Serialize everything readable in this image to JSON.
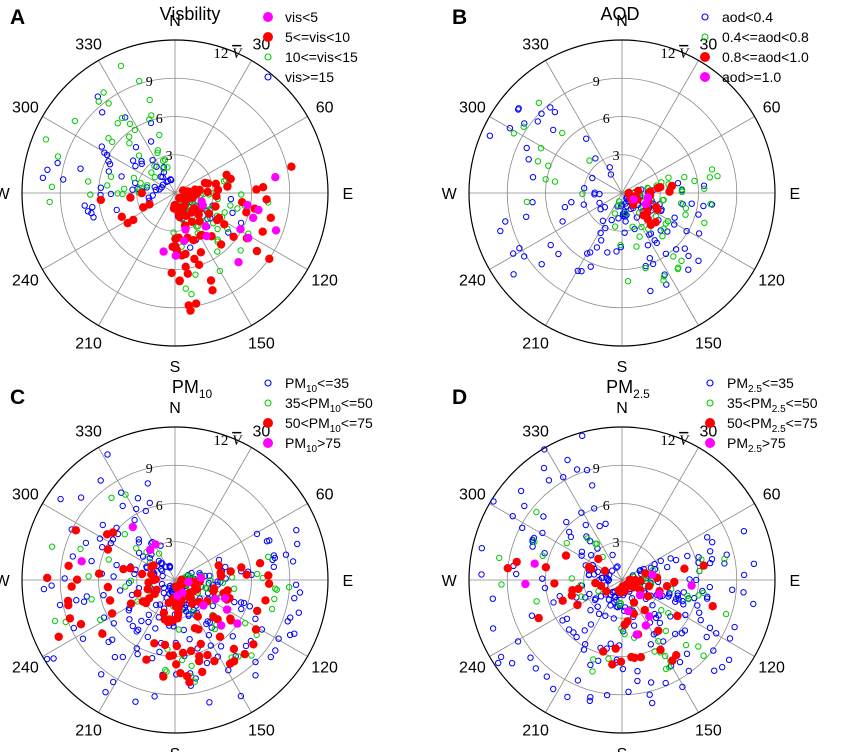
{
  "chart_data": [
    {
      "type": "scatter",
      "projection": "polar",
      "panel_label": "A",
      "title": "Visbility",
      "speed_label": "12",
      "speed_symbol": "V",
      "radial_ticks": [
        3,
        6,
        9
      ],
      "radial_max": 12,
      "angle_labels": [
        "N",
        "30",
        "60",
        "E",
        "120",
        "150",
        "S",
        "210",
        "240",
        "W",
        "300",
        "330"
      ],
      "legend": [
        {
          "label": "vis<5",
          "color": "#ff00ff",
          "filled": true
        },
        {
          "label": "5<=vis<10",
          "color": "#ff0000",
          "filled": true
        },
        {
          "label": "10<=vis<15",
          "color": "#00cc00",
          "filled": false
        },
        {
          "label": "vis>=15",
          "color": "#0000ff",
          "filled": false
        }
      ],
      "clusters": [
        {
          "series": 3,
          "count": 55,
          "amin": 250,
          "amax": 345,
          "rmin": 1,
          "rmax": 10.5,
          "seed": 11
        },
        {
          "series": 3,
          "count": 25,
          "amin": 95,
          "amax": 175,
          "rmin": 1,
          "rmax": 6,
          "seed": 12
        },
        {
          "series": 2,
          "count": 45,
          "amin": 265,
          "amax": 345,
          "rmin": 2,
          "rmax": 11.5,
          "seed": 13
        },
        {
          "series": 2,
          "count": 55,
          "amin": 75,
          "amax": 190,
          "rmin": 1,
          "rmax": 9,
          "seed": 14
        },
        {
          "series": 1,
          "count": 85,
          "amin": 70,
          "amax": 185,
          "rmin": 0.5,
          "rmax": 9.5,
          "seed": 15
        },
        {
          "series": 1,
          "count": 8,
          "amin": 235,
          "amax": 280,
          "rmin": 2,
          "rmax": 6,
          "seed": 16
        },
        {
          "series": 0,
          "count": 16,
          "amin": 80,
          "amax": 205,
          "rmin": 2,
          "rmax": 10.5,
          "seed": 17
        }
      ]
    },
    {
      "type": "scatter",
      "projection": "polar",
      "panel_label": "B",
      "title": "AOD",
      "speed_label": "12",
      "speed_symbol": "V",
      "radial_ticks": [
        3,
        6,
        9
      ],
      "radial_max": 12,
      "angle_labels": [
        "N",
        "30",
        "60",
        "E",
        "120",
        "150",
        "S",
        "210",
        "240",
        "W",
        "300",
        "330"
      ],
      "legend": [
        {
          "label": "aod<0.4",
          "color": "#0000ff",
          "filled": false
        },
        {
          "label": "0.4<=aod<0.8",
          "color": "#00cc00",
          "filled": false
        },
        {
          "label": "0.8<=aod<1.0",
          "color": "#ff0000",
          "filled": true
        },
        {
          "label": "aod>=1.0",
          "color": "#ff00ff",
          "filled": true
        }
      ],
      "clusters": [
        {
          "series": 0,
          "count": 95,
          "amin": 80,
          "amax": 215,
          "rmin": 0.5,
          "rmax": 8.5,
          "seed": 21
        },
        {
          "series": 0,
          "count": 40,
          "amin": 225,
          "amax": 340,
          "rmin": 1.5,
          "rmax": 11.5,
          "seed": 22
        },
        {
          "series": 1,
          "count": 55,
          "amin": 70,
          "amax": 200,
          "rmin": 0.5,
          "rmax": 8,
          "seed": 23
        },
        {
          "series": 1,
          "count": 12,
          "amin": 260,
          "amax": 340,
          "rmin": 3,
          "rmax": 10,
          "seed": 24
        },
        {
          "series": 2,
          "count": 22,
          "amin": 80,
          "amax": 140,
          "rmin": 0.5,
          "rmax": 4.5,
          "seed": 25
        },
        {
          "series": 3,
          "count": 3,
          "amin": 90,
          "amax": 130,
          "rmin": 1,
          "rmax": 3,
          "seed": 26
        }
      ]
    },
    {
      "type": "scatter",
      "projection": "polar",
      "panel_label": "C",
      "title": "PM",
      "title_sub": "10",
      "speed_label": "12",
      "speed_symbol": "V",
      "radial_ticks": [
        3,
        6,
        9
      ],
      "radial_max": 12,
      "angle_labels": [
        "N",
        "30",
        "60",
        "E",
        "120",
        "150",
        "S",
        "210",
        "240",
        "W",
        "300",
        "330"
      ],
      "legend": [
        {
          "label": "PM",
          "sub": "10",
          "suffix": "<=35",
          "color": "#0000ff",
          "filled": false
        },
        {
          "label": "35<PM",
          "sub": "10",
          "suffix": "<=50",
          "color": "#00cc00",
          "filled": false
        },
        {
          "label": "50<PM",
          "sub": "10",
          "suffix": "<=75",
          "color": "#ff0000",
          "filled": true
        },
        {
          "label": "PM",
          "sub": "10",
          "suffix": ">75",
          "color": "#ff00ff",
          "filled": true
        }
      ],
      "clusters": [
        {
          "series": 0,
          "count": 160,
          "amin": 60,
          "amax": 220,
          "rmin": 0.5,
          "rmax": 10.5,
          "seed": 31
        },
        {
          "series": 0,
          "count": 90,
          "amin": 220,
          "amax": 345,
          "rmin": 1,
          "rmax": 12,
          "seed": 32
        },
        {
          "series": 1,
          "count": 60,
          "amin": 70,
          "amax": 200,
          "rmin": 0.5,
          "rmax": 9,
          "seed": 33
        },
        {
          "series": 1,
          "count": 20,
          "amin": 240,
          "amax": 330,
          "rmin": 2,
          "rmax": 10,
          "seed": 34
        },
        {
          "series": 2,
          "count": 90,
          "amin": 70,
          "amax": 200,
          "rmin": 0.5,
          "rmax": 8.5,
          "seed": 35
        },
        {
          "series": 2,
          "count": 35,
          "amin": 230,
          "amax": 320,
          "rmin": 1.5,
          "rmax": 10.5,
          "seed": 36
        },
        {
          "series": 3,
          "count": 10,
          "amin": 80,
          "amax": 200,
          "rmin": 1,
          "rmax": 7,
          "seed": 37
        },
        {
          "series": 3,
          "count": 4,
          "amin": 260,
          "amax": 345,
          "rmin": 3,
          "rmax": 10,
          "seed": 38
        }
      ]
    },
    {
      "type": "scatter",
      "projection": "polar",
      "panel_label": "D",
      "title": "PM",
      "title_sub": "2.5",
      "speed_label": "12",
      "speed_symbol": "V",
      "radial_ticks": [
        3,
        6,
        9
      ],
      "radial_max": 12,
      "angle_labels": [
        "N",
        "30",
        "60",
        "E",
        "120",
        "150",
        "S",
        "210",
        "240",
        "W",
        "300",
        "330"
      ],
      "legend": [
        {
          "label": "PM",
          "sub": "2.5",
          "suffix": "<=35",
          "color": "#0000ff",
          "filled": false
        },
        {
          "label": "35<PM",
          "sub": "2.5",
          "suffix": "<=50",
          "color": "#00cc00",
          "filled": false
        },
        {
          "label": "50<PM",
          "sub": "2.5",
          "suffix": "<=75",
          "color": "#ff0000",
          "filled": true
        },
        {
          "label": "PM",
          "sub": "2.5",
          "suffix": ">75",
          "color": "#ff00ff",
          "filled": true
        }
      ],
      "clusters": [
        {
          "series": 0,
          "count": 170,
          "amin": 60,
          "amax": 220,
          "rmin": 0.5,
          "rmax": 10.5,
          "seed": 41
        },
        {
          "series": 0,
          "count": 90,
          "amin": 220,
          "amax": 345,
          "rmin": 1,
          "rmax": 12,
          "seed": 42
        },
        {
          "series": 1,
          "count": 55,
          "amin": 70,
          "amax": 200,
          "rmin": 0.5,
          "rmax": 9,
          "seed": 43
        },
        {
          "series": 1,
          "count": 15,
          "amin": 240,
          "amax": 330,
          "rmin": 2,
          "rmax": 10,
          "seed": 44
        },
        {
          "series": 2,
          "count": 45,
          "amin": 70,
          "amax": 200,
          "rmin": 0.5,
          "rmax": 7.5,
          "seed": 45
        },
        {
          "series": 2,
          "count": 18,
          "amin": 230,
          "amax": 320,
          "rmin": 1.5,
          "rmax": 9.5,
          "seed": 46
        },
        {
          "series": 3,
          "count": 8,
          "amin": 80,
          "amax": 200,
          "rmin": 1,
          "rmax": 6,
          "seed": 47
        },
        {
          "series": 3,
          "count": 2,
          "amin": 260,
          "amax": 290,
          "rmin": 6,
          "rmax": 9,
          "seed": 48
        }
      ]
    }
  ]
}
